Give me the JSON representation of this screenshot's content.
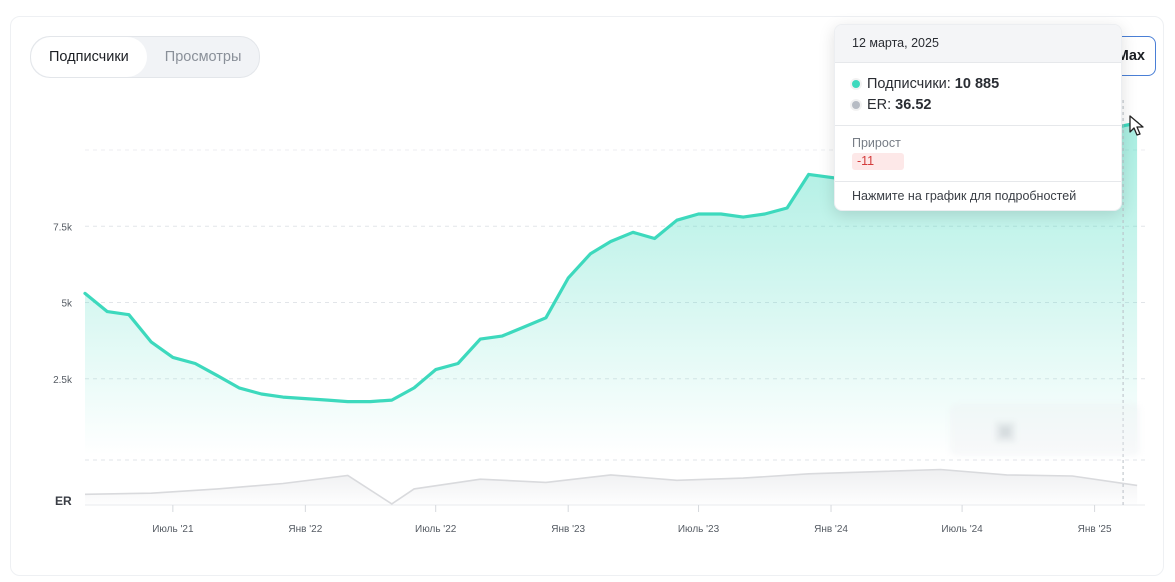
{
  "tabs": [
    {
      "label": "Подписчики",
      "active": true
    },
    {
      "label": "Просмотры",
      "active": false
    }
  ],
  "range_button": "Max",
  "tooltip": {
    "date": "12 марта, 2025",
    "subscribers_label": "Подписчики:",
    "subscribers_value": "10 885",
    "er_label": "ER:",
    "er_value": "36.52",
    "growth_label": "Прирост",
    "growth_value": "-11",
    "hint": "Нажмите на график для подробностей"
  },
  "watermark": "Telemetr.io",
  "colors": {
    "subscribers": "#3dd9bd",
    "er": "#d9dadd",
    "growth_negative": "#d33b3b",
    "accent": "#4a7fd6"
  },
  "chart_data": {
    "type": "area",
    "series": [
      {
        "name": "Подписчики",
        "x": [
          "2021-03",
          "2021-04",
          "2021-05",
          "2021-06",
          "2021-07",
          "2021-08",
          "2021-09",
          "2021-10",
          "2021-11",
          "2021-12",
          "2022-01",
          "2022-02",
          "2022-03",
          "2022-04",
          "2022-05",
          "2022-06",
          "2022-07",
          "2022-08",
          "2022-09",
          "2022-10",
          "2022-11",
          "2022-12",
          "2023-01",
          "2023-02",
          "2023-03",
          "2023-04",
          "2023-05",
          "2023-06",
          "2023-07",
          "2023-08",
          "2023-09",
          "2023-10",
          "2023-11",
          "2023-12",
          "2024-01",
          "2024-02",
          "2024-03",
          "2024-04",
          "2024-05",
          "2024-06",
          "2024-07",
          "2024-08",
          "2024-09",
          "2024-10",
          "2024-11",
          "2024-12",
          "2025-01",
          "2025-02",
          "2025-03"
        ],
        "values": [
          5300,
          4700,
          4600,
          3700,
          3200,
          3000,
          2600,
          2200,
          2000,
          1900,
          1850,
          1800,
          1750,
          1750,
          1800,
          2200,
          2800,
          3000,
          3800,
          3900,
          4200,
          4500,
          5800,
          6600,
          7000,
          7300,
          7100,
          7700,
          7900,
          7900,
          7800,
          7900,
          8100,
          9200,
          9100,
          9000,
          9100,
          9300,
          9500,
          9700,
          9900,
          10000,
          10100,
          10200,
          10400,
          10500,
          10600,
          10750,
          10885
        ]
      },
      {
        "name": "ER",
        "x": [
          "2021-03",
          "2021-06",
          "2021-09",
          "2021-12",
          "2022-03",
          "2022-05",
          "2022-06",
          "2022-09",
          "2022-12",
          "2023-03",
          "2023-06",
          "2023-09",
          "2023-12",
          "2024-03",
          "2024-06",
          "2024-09",
          "2024-12",
          "2025-03"
        ],
        "values": [
          20,
          22,
          30,
          40,
          55,
          2,
          30,
          48,
          42,
          56,
          46,
          50,
          58,
          62,
          66,
          56,
          54,
          36.52
        ]
      }
    ],
    "x_tick_labels": [
      "Июль '21",
      "Янв '22",
      "Июль '22",
      "Янв '23",
      "Июль '23",
      "Янв '24",
      "Июль '24",
      "Янв '25"
    ],
    "y_tick_labels": [
      "2.5k",
      "5k",
      "7.5k"
    ],
    "y_ticks": [
      2500,
      5000,
      7500
    ],
    "er_axis_label": "ER",
    "ylim": [
      0,
      11000
    ],
    "grid": true
  }
}
